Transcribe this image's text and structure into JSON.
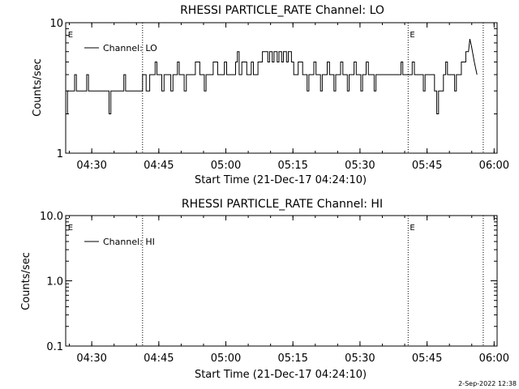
{
  "footer_date": "2-Sep-2022 12:38",
  "chart_data": [
    {
      "type": "line",
      "title": "RHESSI PARTICLE_RATE Channel: LO",
      "xlabel": "Start Time (21-Dec-17 04:24:10)",
      "ylabel": "Counts/sec",
      "x_unit": "minutes after 04:24:10",
      "xlim": [
        0,
        96.5
      ],
      "ylim": [
        1,
        10
      ],
      "yscale": "log",
      "x_ticks": [
        {
          "x": 5.83,
          "label": "04:30"
        },
        {
          "x": 20.83,
          "label": "04:45"
        },
        {
          "x": 35.83,
          "label": "05:00"
        },
        {
          "x": 50.83,
          "label": "05:15"
        },
        {
          "x": 65.83,
          "label": "05:30"
        },
        {
          "x": 80.83,
          "label": "05:45"
        },
        {
          "x": 95.83,
          "label": "06:00"
        }
      ],
      "y_ticks": [
        {
          "y": 1,
          "label": "1"
        },
        {
          "y": 10,
          "label": "10"
        }
      ],
      "vlines": [
        17.2,
        76.6,
        93.4
      ],
      "markers": [
        {
          "x": 0.3,
          "label": "E"
        },
        {
          "x": 76.8,
          "label": "E"
        }
      ],
      "legend": {
        "position": "top-left",
        "entries": [
          "Channel: LO"
        ]
      },
      "grid": false,
      "series": [
        {
          "name": "Channel: LO",
          "color": "#000000",
          "points": [
            [
              0,
              2
            ],
            [
              0.4,
              2
            ],
            [
              0.4,
              3
            ],
            [
              2,
              3
            ],
            [
              2,
              4
            ],
            [
              2.4,
              4
            ],
            [
              2.4,
              3
            ],
            [
              4.7,
              3
            ],
            [
              4.7,
              4
            ],
            [
              5.1,
              4
            ],
            [
              5.1,
              3
            ],
            [
              9.7,
              3
            ],
            [
              9.7,
              2
            ],
            [
              10.1,
              2
            ],
            [
              10.1,
              3
            ],
            [
              13,
              3
            ],
            [
              13,
              4
            ],
            [
              13.4,
              4
            ],
            [
              13.4,
              3
            ],
            [
              17.2,
              3
            ],
            [
              17.2,
              4
            ],
            [
              18,
              4
            ],
            [
              18,
              3
            ],
            [
              18.8,
              3
            ],
            [
              18.8,
              4
            ],
            [
              20,
              4
            ],
            [
              20,
              5
            ],
            [
              20.4,
              5
            ],
            [
              20.4,
              4
            ],
            [
              21.5,
              4
            ],
            [
              21.5,
              3
            ],
            [
              22,
              3
            ],
            [
              22,
              4
            ],
            [
              23.5,
              4
            ],
            [
              23.5,
              3
            ],
            [
              24,
              3
            ],
            [
              24,
              4
            ],
            [
              25,
              4
            ],
            [
              25,
              5
            ],
            [
              25.4,
              5
            ],
            [
              25.4,
              4
            ],
            [
              26.5,
              4
            ],
            [
              26.5,
              3
            ],
            [
              27,
              3
            ],
            [
              27,
              4
            ],
            [
              29,
              4
            ],
            [
              29,
              5
            ],
            [
              30,
              5
            ],
            [
              30,
              4
            ],
            [
              31,
              4
            ],
            [
              31,
              3
            ],
            [
              31.4,
              3
            ],
            [
              31.4,
              4
            ],
            [
              33,
              4
            ],
            [
              33,
              5
            ],
            [
              34,
              5
            ],
            [
              34,
              4
            ],
            [
              35.5,
              4
            ],
            [
              35.5,
              5
            ],
            [
              36,
              5
            ],
            [
              36,
              4
            ],
            [
              38,
              4
            ],
            [
              38,
              5
            ],
            [
              38.4,
              5
            ],
            [
              38.4,
              6
            ],
            [
              38.8,
              6
            ],
            [
              38.8,
              4
            ],
            [
              39.4,
              4
            ],
            [
              39.4,
              5
            ],
            [
              40.5,
              5
            ],
            [
              40.5,
              4
            ],
            [
              41.5,
              4
            ],
            [
              41.5,
              5
            ],
            [
              42,
              5
            ],
            [
              42,
              4
            ],
            [
              43,
              4
            ],
            [
              43,
              5
            ],
            [
              44,
              5
            ],
            [
              44,
              6
            ],
            [
              45.2,
              6
            ],
            [
              45.2,
              5
            ],
            [
              45.6,
              5
            ],
            [
              45.6,
              6
            ],
            [
              46.2,
              6
            ],
            [
              46.2,
              5
            ],
            [
              46.6,
              5
            ],
            [
              46.6,
              6
            ],
            [
              47.3,
              6
            ],
            [
              47.3,
              5
            ],
            [
              47.7,
              5
            ],
            [
              47.7,
              6
            ],
            [
              48.3,
              6
            ],
            [
              48.3,
              5
            ],
            [
              48.7,
              5
            ],
            [
              48.7,
              6
            ],
            [
              49.4,
              6
            ],
            [
              49.4,
              5
            ],
            [
              49.8,
              5
            ],
            [
              49.8,
              6
            ],
            [
              50.5,
              6
            ],
            [
              50.5,
              5
            ],
            [
              51,
              5
            ],
            [
              51,
              4
            ],
            [
              52,
              4
            ],
            [
              52,
              5
            ],
            [
              53,
              5
            ],
            [
              53,
              4
            ],
            [
              54,
              4
            ],
            [
              54,
              3
            ],
            [
              54.4,
              3
            ],
            [
              54.4,
              4
            ],
            [
              55.5,
              4
            ],
            [
              55.5,
              5
            ],
            [
              56,
              5
            ],
            [
              56,
              4
            ],
            [
              57,
              4
            ],
            [
              57,
              3
            ],
            [
              57.4,
              3
            ],
            [
              57.4,
              4
            ],
            [
              58.5,
              4
            ],
            [
              58.5,
              5
            ],
            [
              59,
              5
            ],
            [
              59,
              4
            ],
            [
              60,
              4
            ],
            [
              60,
              3
            ],
            [
              60.4,
              3
            ],
            [
              60.4,
              4
            ],
            [
              61.5,
              4
            ],
            [
              61.5,
              5
            ],
            [
              62,
              5
            ],
            [
              62,
              4
            ],
            [
              63,
              4
            ],
            [
              63,
              3
            ],
            [
              63.4,
              3
            ],
            [
              63.4,
              4
            ],
            [
              64.5,
              4
            ],
            [
              64.5,
              5
            ],
            [
              65,
              5
            ],
            [
              65,
              4
            ],
            [
              66,
              4
            ],
            [
              66,
              3
            ],
            [
              66.4,
              3
            ],
            [
              66.4,
              4
            ],
            [
              67.2,
              4
            ],
            [
              67.2,
              5
            ],
            [
              67.7,
              5
            ],
            [
              67.7,
              4
            ],
            [
              69,
              4
            ],
            [
              69,
              3
            ],
            [
              69.4,
              3
            ],
            [
              69.4,
              4
            ],
            [
              75,
              4
            ],
            [
              75,
              5
            ],
            [
              75.4,
              5
            ],
            [
              75.4,
              4
            ],
            [
              77.5,
              4
            ],
            [
              77.5,
              5
            ],
            [
              78,
              5
            ],
            [
              78,
              4
            ],
            [
              80,
              4
            ],
            [
              80,
              3
            ],
            [
              80.4,
              3
            ],
            [
              80.4,
              4
            ],
            [
              82.5,
              4
            ],
            [
              82.5,
              3
            ],
            [
              83,
              3
            ],
            [
              83,
              2
            ],
            [
              83.4,
              2
            ],
            [
              83.4,
              3
            ],
            [
              84.5,
              3
            ],
            [
              84.5,
              4
            ],
            [
              85,
              4
            ],
            [
              85,
              5
            ],
            [
              85.4,
              5
            ],
            [
              85.4,
              4
            ],
            [
              87,
              4
            ],
            [
              87,
              3
            ],
            [
              87.4,
              3
            ],
            [
              87.4,
              4
            ],
            [
              88.5,
              4
            ],
            [
              88.5,
              5
            ],
            [
              89.5,
              5
            ],
            [
              89.5,
              6
            ],
            [
              90.1,
              6
            ],
            [
              90.4,
              7.5
            ],
            [
              90.8,
              6.5
            ],
            [
              91.4,
              5
            ],
            [
              92,
              4
            ]
          ]
        }
      ]
    },
    {
      "type": "line",
      "title": "RHESSI PARTICLE_RATE Channel: HI",
      "xlabel": "Start Time (21-Dec-17 04:24:10)",
      "ylabel": "Counts/sec",
      "x_unit": "minutes after 04:24:10",
      "xlim": [
        0,
        96.5
      ],
      "ylim": [
        0.1,
        10
      ],
      "yscale": "log",
      "x_ticks": [
        {
          "x": 5.83,
          "label": "04:30"
        },
        {
          "x": 20.83,
          "label": "04:45"
        },
        {
          "x": 35.83,
          "label": "05:00"
        },
        {
          "x": 50.83,
          "label": "05:15"
        },
        {
          "x": 65.83,
          "label": "05:30"
        },
        {
          "x": 80.83,
          "label": "05:45"
        },
        {
          "x": 95.83,
          "label": "06:00"
        }
      ],
      "y_ticks": [
        {
          "y": 0.1,
          "label": "0.1"
        },
        {
          "y": 1,
          "label": "1.0"
        },
        {
          "y": 10,
          "label": "10.0"
        }
      ],
      "vlines": [
        17.2,
        76.6,
        93.4
      ],
      "markers": [
        {
          "x": 0.3,
          "label": "E"
        },
        {
          "x": 76.8,
          "label": "E"
        }
      ],
      "legend": {
        "position": "top-left",
        "entries": [
          "Channel: HI"
        ]
      },
      "grid": false,
      "series": [
        {
          "name": "Channel: HI",
          "color": "#000000",
          "points": []
        }
      ]
    }
  ]
}
